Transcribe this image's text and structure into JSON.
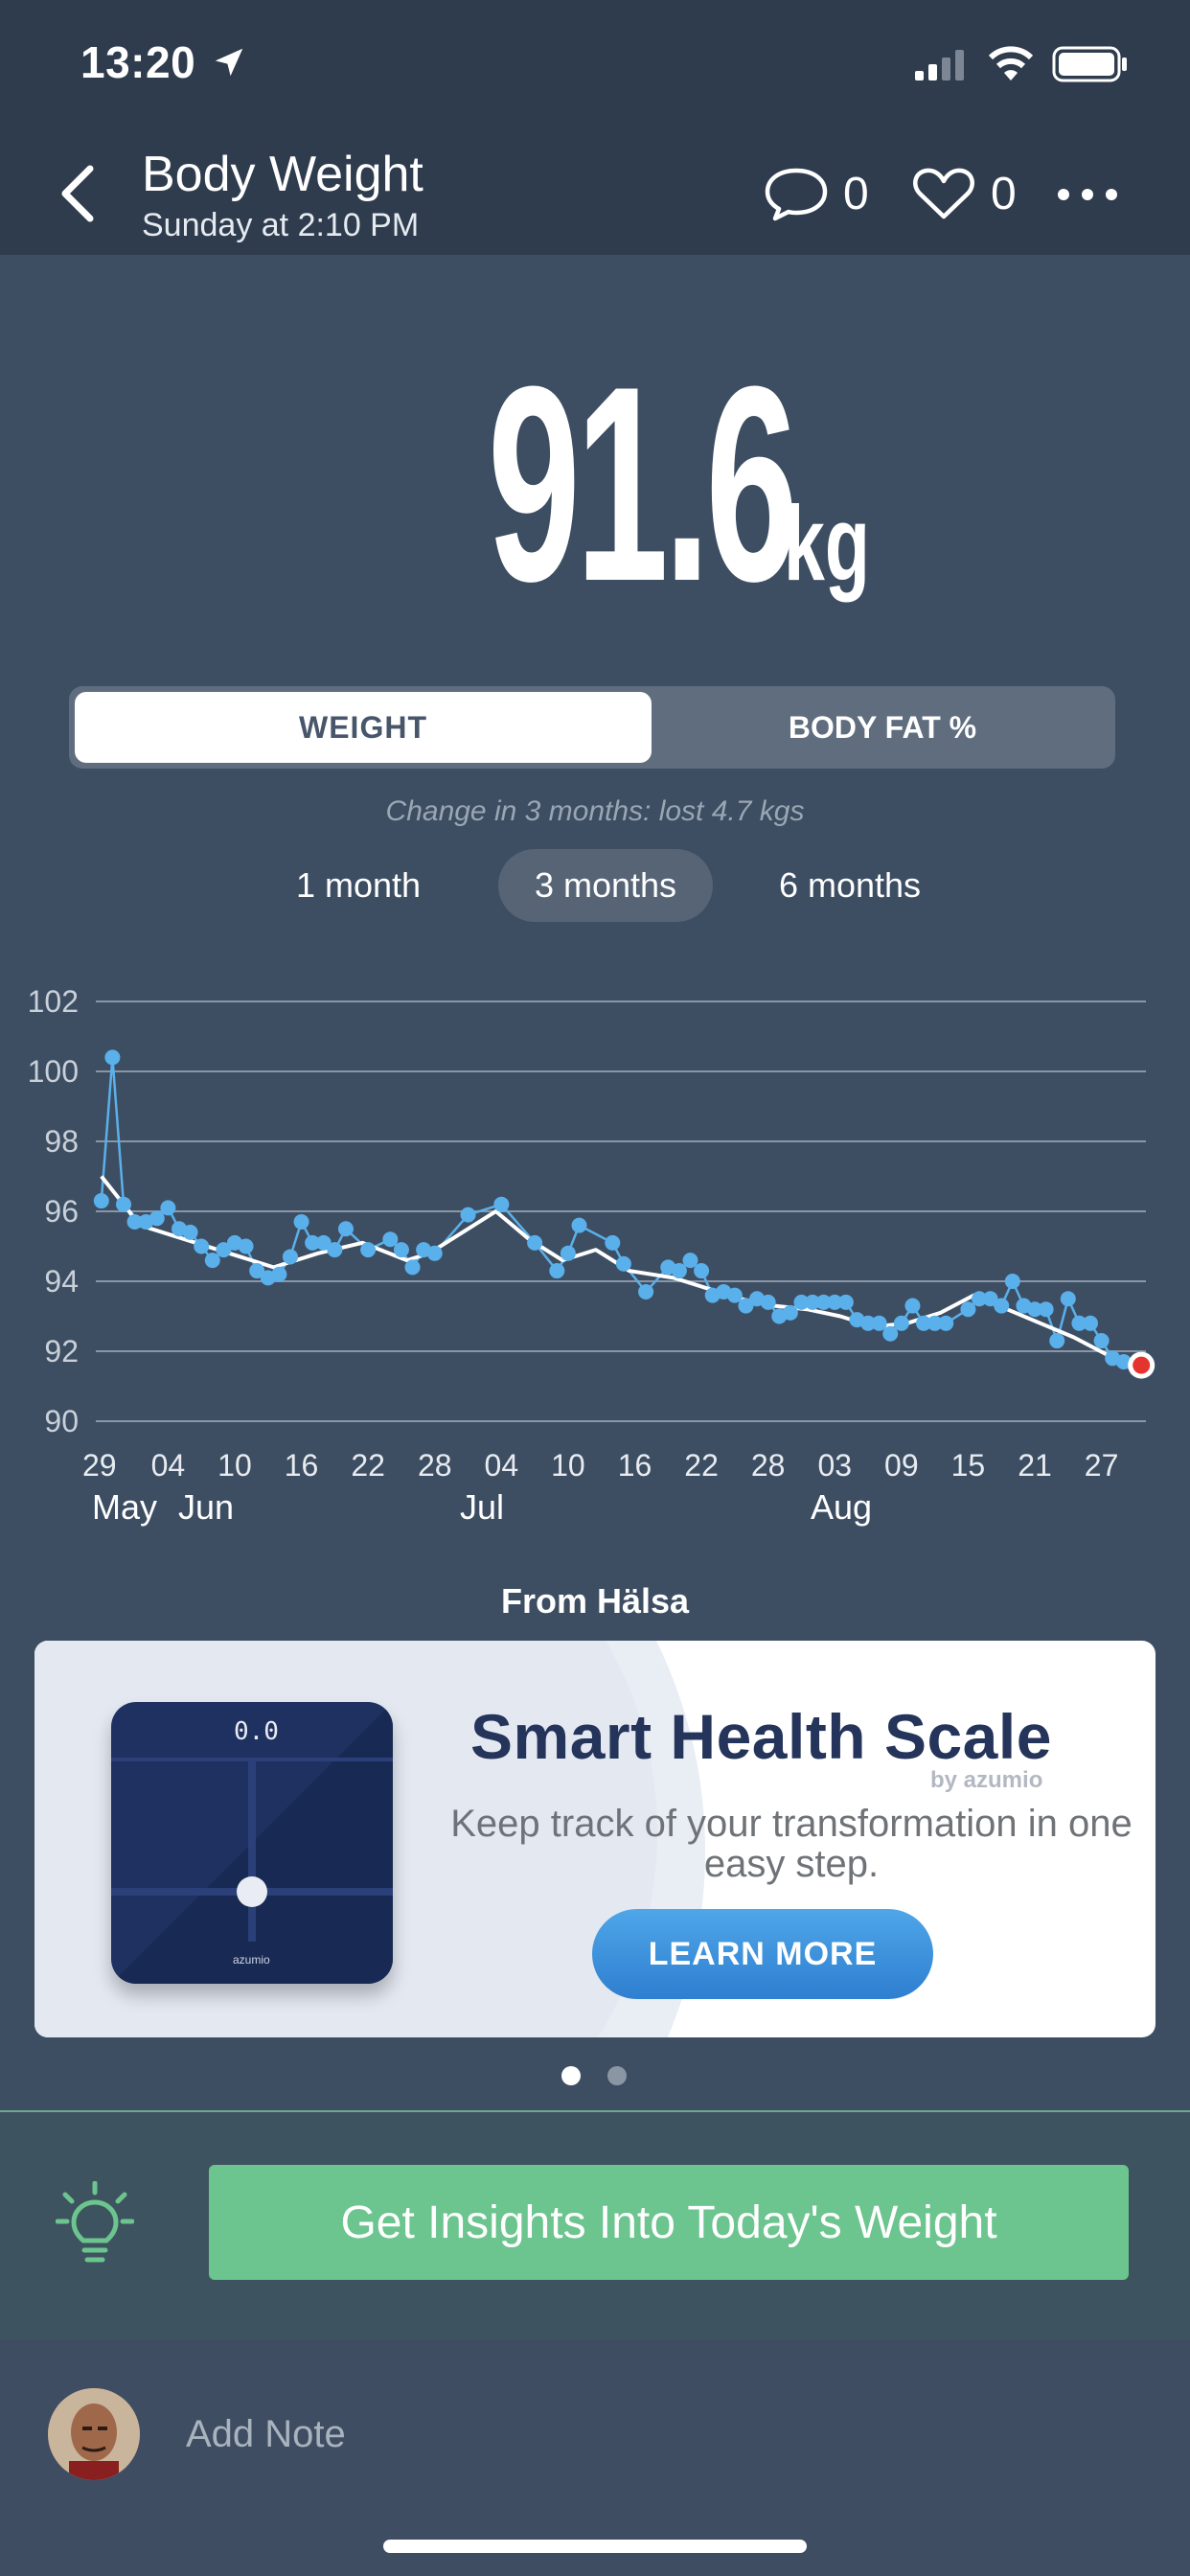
{
  "status": {
    "time": "13:20"
  },
  "header": {
    "title": "Body Weight",
    "subtitle": "Sunday at 2:10 PM",
    "comment_count": "0",
    "like_count": "0"
  },
  "reading": {
    "value": "91.6",
    "unit": "kg"
  },
  "tabs": {
    "weight": "WEIGHT",
    "body_fat": "BODY FAT %",
    "active": "weight"
  },
  "change_text": "Change in 3 months: lost 4.7 kgs",
  "ranges": [
    "1 month",
    "3 months",
    "6 months"
  ],
  "active_range": "3 months",
  "chart_data": {
    "type": "line",
    "ylim": [
      90,
      102
    ],
    "yticks": [
      102,
      100,
      98,
      96,
      94,
      92,
      90
    ],
    "xticks": [
      "29",
      "04",
      "10",
      "16",
      "22",
      "28",
      "04",
      "10",
      "16",
      "22",
      "28",
      "03",
      "09",
      "15",
      "21",
      "27"
    ],
    "month_labels": [
      "May",
      "Jun",
      "Jul",
      "Aug"
    ],
    "grid": true,
    "series": [
      {
        "color": "#5ab0ea",
        "x": [
          0.5,
          1.5,
          2.5,
          3.5,
          4.5,
          5.5,
          6.5,
          7.5,
          8.5,
          9.5,
          10.5,
          11.5,
          12.5,
          13.5,
          14.5,
          15.5,
          16.5,
          17.5,
          18.5,
          19.5,
          20.5,
          21.5,
          22.5,
          24.5,
          26.5,
          27.5,
          28.5,
          29.5,
          30.5,
          33.5,
          36.5,
          39.5,
          41.5,
          42.5,
          43.5,
          46.5,
          47.5,
          49.5,
          51.5,
          52.5,
          53.5,
          54.5,
          55.5,
          56.5,
          57.5,
          58.5,
          59.5,
          60.5,
          61.5,
          62.5,
          63.5,
          64.5,
          65.5,
          66.5,
          67.5,
          68.5,
          69.5,
          70.5,
          71.5,
          72.5,
          73.5,
          74.5,
          75.5,
          76.5,
          78.5,
          79.5,
          80.5,
          81.5,
          82.5,
          83.5,
          84.5,
          85.5,
          86.5,
          87.5,
          88.5,
          89.5,
          90.5,
          91.5,
          92.5,
          93.5
        ],
        "values": [
          96.3,
          100.4,
          96.2,
          95.7,
          95.7,
          95.8,
          96.1,
          95.5,
          95.4,
          95.0,
          94.6,
          94.9,
          95.1,
          95.0,
          94.3,
          94.1,
          94.2,
          94.7,
          95.7,
          95.1,
          95.1,
          94.9,
          95.5,
          94.9,
          95.2,
          94.9,
          94.4,
          94.9,
          94.8,
          95.9,
          96.2,
          95.1,
          94.3,
          94.8,
          95.6,
          95.1,
          94.5,
          93.7,
          94.4,
          94.3,
          94.6,
          94.3,
          93.6,
          93.7,
          93.6,
          93.3,
          93.5,
          93.4,
          93.0,
          93.1,
          93.4,
          93.4,
          93.4,
          93.4,
          93.4,
          92.9,
          92.8,
          92.8,
          92.5,
          92.8,
          93.3,
          92.8,
          92.8,
          92.8,
          93.2,
          93.5,
          93.5,
          93.3,
          94.0,
          93.3,
          93.2,
          93.2,
          92.3,
          93.5,
          92.8,
          92.8,
          92.3,
          91.8,
          91.7,
          91.6
        ]
      },
      {
        "color": "#ffffff",
        "x": [
          0.5,
          4,
          8,
          12,
          16,
          20,
          24,
          28,
          30,
          33,
          36,
          39,
          42,
          45,
          48,
          52,
          55,
          58,
          61,
          64,
          67,
          70,
          73,
          76,
          79,
          82,
          85,
          88,
          91,
          93.5
        ],
        "values": [
          97.0,
          95.6,
          95.2,
          94.8,
          94.4,
          94.8,
          95.1,
          94.6,
          94.8,
          95.4,
          96.0,
          95.2,
          94.6,
          94.9,
          94.3,
          94.1,
          93.8,
          93.5,
          93.3,
          93.2,
          93.0,
          92.7,
          92.8,
          93.1,
          93.6,
          93.2,
          92.8,
          92.4,
          91.9,
          91.7
        ]
      }
    ],
    "latest_point": {
      "x": 94.0,
      "value": 91.6,
      "color": "#e4342e"
    }
  },
  "promo": {
    "from_label": "From Hälsa",
    "title": "Smart Health Scale",
    "brand": "by azumio",
    "description": "Keep track of your transformation in one easy step.",
    "cta": "LEARN MORE",
    "scale_display": "0.0",
    "scale_brand": "azumio",
    "page_count": 2,
    "active_page": 0
  },
  "insights": {
    "button_label": "Get Insights Into Today's Weight"
  },
  "note": {
    "placeholder": "Add Note"
  }
}
